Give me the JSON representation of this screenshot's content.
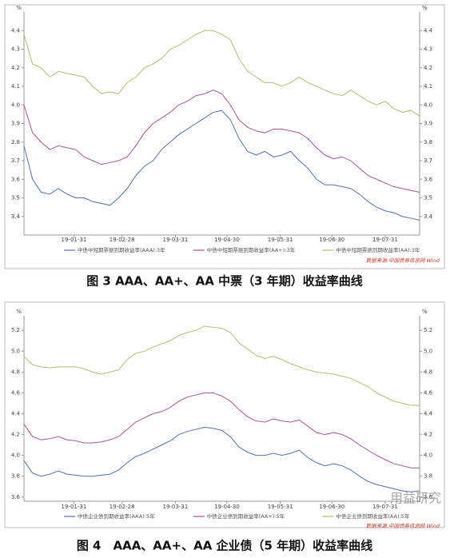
{
  "chart_data": [
    {
      "type": "line",
      "y_unit": "%",
      "x": [
        "19-01-02",
        "19-01-07",
        "19-01-12",
        "19-01-17",
        "19-01-22",
        "19-01-27",
        "19-02-01",
        "19-02-06",
        "19-02-11",
        "19-02-16",
        "19-02-21",
        "19-02-26",
        "19-03-03",
        "19-03-08",
        "19-03-13",
        "19-03-18",
        "19-03-23",
        "19-03-28",
        "19-04-02",
        "19-04-07",
        "19-04-12",
        "19-04-17",
        "19-04-22",
        "19-04-27",
        "19-05-02",
        "19-05-07",
        "19-05-12",
        "19-05-17",
        "19-05-22",
        "19-05-27",
        "19-06-01",
        "19-06-06",
        "19-06-11",
        "19-06-16",
        "19-06-21",
        "19-06-26",
        "19-07-01",
        "19-07-06",
        "19-07-11",
        "19-07-16",
        "19-07-21",
        "19-07-26",
        "19-07-31",
        "19-08-05",
        "19-08-10",
        "19-08-15",
        "19-08-20"
      ],
      "xlim": [
        "19-01-02",
        "19-08-20"
      ],
      "xticks": [
        "19-01-31",
        "19-02-28",
        "19-03-31",
        "19-04-30",
        "19-05-31",
        "19-06-30",
        "19-07-31"
      ],
      "ylim": [
        3.3,
        4.5
      ],
      "yticks": [
        3.4,
        3.5,
        3.6,
        3.7,
        3.8,
        3.9,
        {
          "value": 4,
          "label": "4.0"
        },
        4.1,
        4.2,
        4.3,
        4.4
      ],
      "series": [
        {
          "name": "中债中短期票据到期收益率(AAA):3年",
          "color": "#5a6ea8",
          "values": [
            3.78,
            3.6,
            3.53,
            3.52,
            3.55,
            3.52,
            3.5,
            3.5,
            3.48,
            3.47,
            3.46,
            3.5,
            3.55,
            3.62,
            3.67,
            3.7,
            3.76,
            3.8,
            3.84,
            3.87,
            3.9,
            3.93,
            3.96,
            3.97,
            3.92,
            3.82,
            3.75,
            3.73,
            3.75,
            3.72,
            3.73,
            3.75,
            3.7,
            3.66,
            3.6,
            3.57,
            3.57,
            3.56,
            3.55,
            3.52,
            3.48,
            3.45,
            3.43,
            3.42,
            3.4,
            3.39,
            3.38
          ]
        },
        {
          "name": "中债中短期票据到期收益率(AA+):3年",
          "color": "#a25a8c",
          "values": [
            4.0,
            3.85,
            3.8,
            3.76,
            3.78,
            3.77,
            3.76,
            3.72,
            3.7,
            3.68,
            3.69,
            3.7,
            3.72,
            3.78,
            3.85,
            3.9,
            3.93,
            3.96,
            4.0,
            4.02,
            4.05,
            4.06,
            4.08,
            4.06,
            4.0,
            3.92,
            3.88,
            3.86,
            3.85,
            3.87,
            3.87,
            3.86,
            3.85,
            3.82,
            3.77,
            3.73,
            3.71,
            3.72,
            3.7,
            3.66,
            3.62,
            3.6,
            3.58,
            3.56,
            3.55,
            3.54,
            3.53
          ]
        },
        {
          "name": "中债中短期票据到期收益率(AA):3年",
          "color": "#b9b978",
          "values": [
            4.38,
            4.22,
            4.2,
            4.15,
            4.18,
            4.17,
            4.16,
            4.15,
            4.1,
            4.06,
            4.07,
            4.06,
            4.12,
            4.15,
            4.2,
            4.22,
            4.25,
            4.3,
            4.32,
            4.35,
            4.38,
            4.4,
            4.4,
            4.38,
            4.35,
            4.25,
            4.18,
            4.15,
            4.12,
            4.12,
            4.1,
            4.12,
            4.15,
            4.12,
            4.1,
            4.08,
            4.06,
            4.05,
            4.08,
            4.05,
            4.02,
            4.0,
            4.02,
            3.98,
            3.96,
            3.97,
            3.94
          ]
        }
      ],
      "source": "数据来源:中国债券信息网 Wind",
      "caption": "图 3 AAA、AA+、AA 中票（3 年期）收益率曲线"
    },
    {
      "type": "line",
      "y_unit": "%",
      "x": [
        "19-01-02",
        "19-01-07",
        "19-01-12",
        "19-01-17",
        "19-01-22",
        "19-01-27",
        "19-02-01",
        "19-02-06",
        "19-02-11",
        "19-02-16",
        "19-02-21",
        "19-02-26",
        "19-03-03",
        "19-03-08",
        "19-03-13",
        "19-03-18",
        "19-03-23",
        "19-03-28",
        "19-04-02",
        "19-04-07",
        "19-04-12",
        "19-04-17",
        "19-04-22",
        "19-04-27",
        "19-05-02",
        "19-05-07",
        "19-05-12",
        "19-05-17",
        "19-05-22",
        "19-05-27",
        "19-06-01",
        "19-06-06",
        "19-06-11",
        "19-06-16",
        "19-06-21",
        "19-06-26",
        "19-07-01",
        "19-07-06",
        "19-07-11",
        "19-07-16",
        "19-07-21",
        "19-07-26",
        "19-07-31",
        "19-08-05",
        "19-08-10",
        "19-08-15",
        "19-08-20"
      ],
      "xlim": [
        "19-01-02",
        "19-08-20"
      ],
      "xticks": [
        "19-01-31",
        "19-02-28",
        "19-03-31",
        "19-04-30",
        "19-05-31",
        "19-06-30",
        "19-07-31"
      ],
      "ylim": [
        3.56,
        5.34
      ],
      "yticks": [
        3.6,
        3.8,
        {
          "value": 4,
          "label": "4.0"
        },
        4.2,
        4.4,
        4.6,
        4.8,
        {
          "value": 5,
          "label": "5.0"
        },
        5.2
      ],
      "series": [
        {
          "name": "中债企业债到期收益率(AAA):5年",
          "color": "#5a6ea8",
          "values": [
            3.95,
            3.83,
            3.8,
            3.82,
            3.85,
            3.82,
            3.81,
            3.8,
            3.8,
            3.81,
            3.82,
            3.86,
            3.93,
            3.99,
            4.02,
            4.06,
            4.1,
            4.14,
            4.2,
            4.23,
            4.25,
            4.27,
            4.26,
            4.24,
            4.18,
            4.08,
            4.03,
            4.0,
            4.0,
            4.02,
            4.0,
            4.02,
            4.05,
            3.98,
            3.93,
            3.9,
            3.92,
            3.9,
            3.86,
            3.8,
            3.75,
            3.72,
            3.7,
            3.68,
            3.66,
            3.65,
            3.66
          ]
        },
        {
          "name": "中债企业债到期收益率(AA+):5年",
          "color": "#a25a8c",
          "values": [
            4.3,
            4.18,
            4.15,
            4.16,
            4.18,
            4.15,
            4.14,
            4.12,
            4.12,
            4.13,
            4.15,
            4.18,
            4.25,
            4.32,
            4.36,
            4.4,
            4.42,
            4.46,
            4.52,
            4.56,
            4.58,
            4.6,
            4.6,
            4.57,
            4.52,
            4.44,
            4.37,
            4.33,
            4.32,
            4.35,
            4.33,
            4.32,
            4.34,
            4.28,
            4.22,
            4.2,
            4.22,
            4.2,
            4.16,
            4.1,
            4.05,
            4.0,
            3.96,
            3.92,
            3.9,
            3.88,
            3.88
          ]
        },
        {
          "name": "中债企业债到期收益率(AA):5年",
          "color": "#b9b978",
          "values": [
            4.95,
            4.87,
            4.85,
            4.84,
            4.85,
            4.85,
            4.85,
            4.83,
            4.8,
            4.78,
            4.8,
            4.82,
            4.92,
            4.98,
            5.0,
            5.04,
            5.07,
            5.1,
            5.15,
            5.18,
            5.2,
            5.24,
            5.23,
            5.22,
            5.18,
            5.08,
            5.02,
            4.96,
            4.93,
            4.95,
            4.92,
            4.88,
            4.85,
            4.82,
            4.8,
            4.79,
            4.78,
            4.76,
            4.74,
            4.7,
            4.66,
            4.6,
            4.56,
            4.52,
            4.5,
            4.48,
            4.48
          ]
        }
      ],
      "source": "数据来源:中国债券信息网 Wind",
      "caption": "图 4　AAA、AA+、AA 企业债（5 年期）收益率曲线",
      "watermark": "用益研究"
    }
  ]
}
